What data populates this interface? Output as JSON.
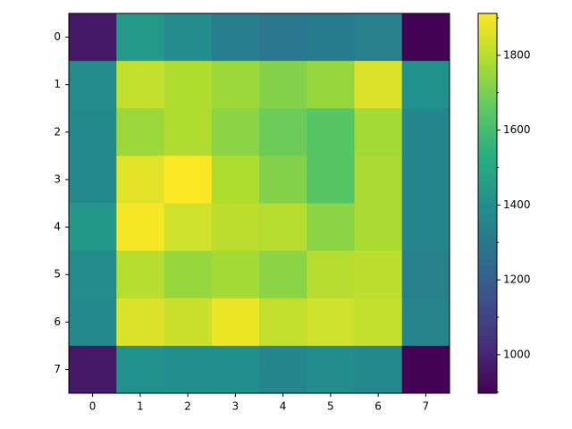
{
  "chart_data": {
    "type": "heatmap",
    "colormap": "viridis",
    "x_categories": [
      0,
      1,
      2,
      3,
      4,
      5,
      6,
      7
    ],
    "y_categories": [
      0,
      1,
      2,
      3,
      4,
      5,
      6,
      7
    ],
    "values": [
      [
        960,
        1440,
        1390,
        1330,
        1300,
        1320,
        1340,
        900
      ],
      [
        1380,
        1820,
        1790,
        1760,
        1720,
        1750,
        1860,
        1410
      ],
      [
        1370,
        1760,
        1790,
        1730,
        1680,
        1640,
        1770,
        1360
      ],
      [
        1370,
        1870,
        1910,
        1790,
        1720,
        1640,
        1780,
        1360
      ],
      [
        1430,
        1900,
        1840,
        1810,
        1800,
        1730,
        1780,
        1360
      ],
      [
        1380,
        1800,
        1750,
        1770,
        1730,
        1800,
        1810,
        1340
      ],
      [
        1370,
        1860,
        1830,
        1890,
        1820,
        1840,
        1820,
        1350
      ],
      [
        960,
        1410,
        1400,
        1400,
        1360,
        1390,
        1370,
        900
      ]
    ],
    "clim": [
      897,
      1912
    ],
    "colorbar_ticks": [
      1000,
      1200,
      1400,
      1600,
      1800
    ],
    "colorbar_minor_ticks": [
      900,
      1100,
      1300,
      1500,
      1700,
      1900
    ]
  }
}
